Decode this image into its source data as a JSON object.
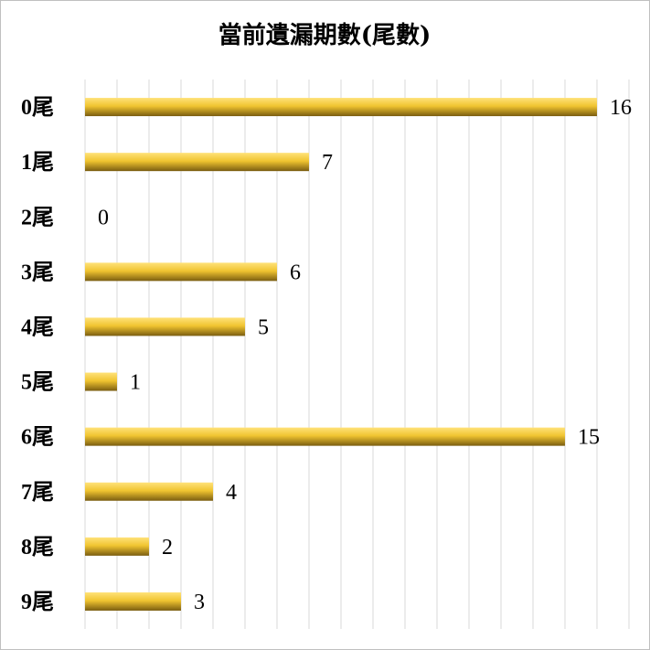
{
  "chart_data": {
    "type": "bar",
    "orientation": "horizontal",
    "title": "當前遺漏期數(尾數)",
    "categories": [
      "0尾",
      "1尾",
      "2尾",
      "3尾",
      "4尾",
      "5尾",
      "6尾",
      "7尾",
      "8尾",
      "9尾"
    ],
    "values": [
      16,
      7,
      0,
      6,
      5,
      1,
      15,
      4,
      2,
      3
    ],
    "xlim": [
      0,
      17
    ],
    "grid": true,
    "legend": "none",
    "data_labels": true,
    "bar_color": "#f0c430"
  }
}
